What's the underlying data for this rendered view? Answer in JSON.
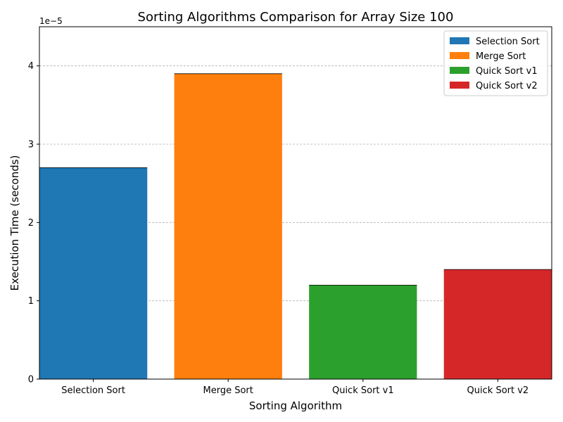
{
  "chart_data": {
    "type": "bar",
    "title": "Sorting Algorithms Comparison for Array Size 100",
    "xlabel": "Sorting Algorithm",
    "ylabel": "Execution Time (seconds)",
    "categories": [
      "Selection Sort",
      "Merge Sort",
      "Quick Sort v1",
      "Quick Sort v2"
    ],
    "values": [
      2.7e-05,
      3.9e-05,
      1.2e-05,
      1.4e-05
    ],
    "colors": [
      "#1f77b4",
      "#ff7f0e",
      "#2ca02c",
      "#d62728"
    ],
    "ylim": [
      0,
      4.5e-05
    ],
    "yticks": [
      0,
      1,
      2,
      3,
      4
    ],
    "y_offset_label": "1e−5",
    "grid": "y-dashed",
    "legend": {
      "placement": "top-right",
      "entries": [
        "Selection Sort",
        "Merge Sort",
        "Quick Sort v1",
        "Quick Sort v2"
      ]
    }
  }
}
